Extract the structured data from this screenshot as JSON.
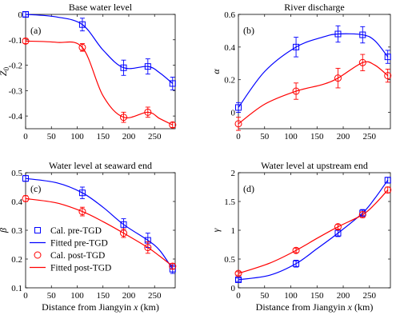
{
  "figure": {
    "shared_xlabel": "Distance from Jiangyin x (km)"
  },
  "colors": {
    "pre": "#0000ff",
    "post": "#ff0000",
    "axis": "#000000",
    "background": "#ffffff"
  },
  "legend": {
    "placement": "bottom-left of panel (c)",
    "entries": [
      {
        "label": "Cal. pre-TGD",
        "kind": "marker-square",
        "series": "pre"
      },
      {
        "label": "Fitted pre-TGD",
        "kind": "line",
        "series": "pre"
      },
      {
        "label": "Cal. post-TGD",
        "kind": "marker-circle",
        "series": "post"
      },
      {
        "label": "Fitted post-TGD",
        "kind": "line",
        "series": "post"
      }
    ]
  },
  "chart_data": [
    {
      "type": "scatter",
      "panel_label": "(a)",
      "title": "Base water level",
      "ylabel": "Z_0",
      "xlabel": "",
      "xlim": [
        0,
        290
      ],
      "ylim": [
        -0.45,
        0.0
      ],
      "xticks": [
        0,
        50,
        100,
        150,
        200,
        250
      ],
      "yticks": [
        0,
        -0.1,
        -0.2,
        -0.3,
        -0.4
      ],
      "ytick_labels": [
        "0",
        "-0.1",
        "-0.2",
        "-0.3",
        "-0.4"
      ],
      "series": [
        {
          "name": "Cal. pre-TGD",
          "key": "pre",
          "marker": "square",
          "x": [
            0,
            110,
            190,
            237,
            285
          ],
          "y": [
            0.0,
            -0.04,
            -0.21,
            -0.205,
            -0.272
          ],
          "err": [
            0.01,
            0.025,
            0.03,
            0.03,
            0.025
          ]
        },
        {
          "name": "Fitted pre-TGD",
          "key": "pre",
          "marker": "line",
          "x": [
            0,
            60,
            110,
            150,
            190,
            237,
            260,
            285
          ],
          "y": [
            0.0,
            -0.01,
            -0.04,
            -0.14,
            -0.21,
            -0.205,
            -0.23,
            -0.272
          ]
        },
        {
          "name": "Cal. post-TGD",
          "key": "post",
          "marker": "circle",
          "x": [
            0,
            110,
            190,
            237,
            285
          ],
          "y": [
            -0.105,
            -0.13,
            -0.405,
            -0.385,
            -0.435
          ],
          "err": [
            0.01,
            0.015,
            0.02,
            0.02,
            0.01
          ]
        },
        {
          "name": "Fitted post-TGD",
          "key": "post",
          "marker": "line",
          "x": [
            0,
            60,
            110,
            150,
            190,
            237,
            260,
            285
          ],
          "y": [
            -0.105,
            -0.11,
            -0.13,
            -0.32,
            -0.405,
            -0.385,
            -0.41,
            -0.435
          ]
        }
      ]
    },
    {
      "type": "scatter",
      "panel_label": "(b)",
      "title": "River discharge",
      "ylabel": "α",
      "xlabel": "",
      "xlim": [
        0,
        290
      ],
      "ylim": [
        -0.1,
        0.6
      ],
      "xticks": [
        0,
        50,
        100,
        150,
        200,
        250
      ],
      "yticks": [
        0,
        0.2,
        0.4,
        0.6
      ],
      "ytick_labels": [
        "0",
        "0.2",
        "0.4",
        "0.6"
      ],
      "series": [
        {
          "name": "Cal. pre-TGD",
          "key": "pre",
          "marker": "square",
          "x": [
            0,
            110,
            190,
            237,
            285
          ],
          "y": [
            0.03,
            0.4,
            0.48,
            0.475,
            0.34
          ],
          "err": [
            0.03,
            0.06,
            0.05,
            0.05,
            0.04
          ]
        },
        {
          "name": "Fitted pre-TGD",
          "key": "pre",
          "marker": "line",
          "x": [
            0,
            50,
            110,
            160,
            190,
            237,
            260,
            285
          ],
          "y": [
            0.03,
            0.25,
            0.4,
            0.46,
            0.48,
            0.475,
            0.44,
            0.34
          ]
        },
        {
          "name": "Cal. post-TGD",
          "key": "post",
          "marker": "circle",
          "x": [
            0,
            110,
            190,
            237,
            285
          ],
          "y": [
            -0.07,
            0.13,
            0.21,
            0.305,
            0.225
          ],
          "err": [
            0.04,
            0.05,
            0.06,
            0.05,
            0.04
          ]
        },
        {
          "name": "Fitted post-TGD",
          "key": "post",
          "marker": "line",
          "x": [
            0,
            50,
            110,
            160,
            190,
            237,
            260,
            285
          ],
          "y": [
            -0.07,
            0.05,
            0.13,
            0.17,
            0.21,
            0.305,
            0.29,
            0.225
          ]
        }
      ]
    },
    {
      "type": "scatter",
      "panel_label": "(c)",
      "title": "Water level at seaward end",
      "ylabel": "β",
      "xlabel": "Distance from Jiangyin x (km)",
      "xlim": [
        0,
        290
      ],
      "ylim": [
        0.1,
        0.5
      ],
      "xticks": [
        0,
        50,
        100,
        150,
        200,
        250
      ],
      "yticks": [
        0.1,
        0.2,
        0.3,
        0.4,
        0.5
      ],
      "ytick_labels": [
        "0.1",
        "0.2",
        "0.3",
        "0.4",
        "0.5"
      ],
      "series": [
        {
          "name": "Cal. pre-TGD",
          "key": "pre",
          "marker": "square",
          "x": [
            0,
            110,
            190,
            237,
            285
          ],
          "y": [
            0.48,
            0.43,
            0.32,
            0.265,
            0.165
          ],
          "err": [
            0.01,
            0.02,
            0.02,
            0.025,
            0.015
          ]
        },
        {
          "name": "Fitted pre-TGD",
          "key": "pre",
          "marker": "line",
          "x": [
            0,
            60,
            110,
            150,
            190,
            237,
            260,
            285
          ],
          "y": [
            0.48,
            0.465,
            0.43,
            0.38,
            0.32,
            0.265,
            0.23,
            0.165
          ]
        },
        {
          "name": "Cal. post-TGD",
          "key": "post",
          "marker": "circle",
          "x": [
            0,
            110,
            190,
            237,
            285
          ],
          "y": [
            0.41,
            0.365,
            0.29,
            0.24,
            0.175
          ],
          "err": [
            0.01,
            0.015,
            0.015,
            0.02,
            0.01
          ]
        },
        {
          "name": "Fitted post-TGD",
          "key": "post",
          "marker": "line",
          "x": [
            0,
            60,
            110,
            150,
            190,
            237,
            260,
            285
          ],
          "y": [
            0.41,
            0.395,
            0.365,
            0.33,
            0.29,
            0.24,
            0.21,
            0.175
          ]
        }
      ]
    },
    {
      "type": "scatter",
      "panel_label": "(d)",
      "title": "Water level at upstream end",
      "ylabel": "γ",
      "xlabel": "Distance from Jiangyin x (km)",
      "xlim": [
        0,
        290
      ],
      "ylim": [
        0,
        2
      ],
      "xticks": [
        0,
        50,
        100,
        150,
        200,
        250
      ],
      "yticks": [
        0,
        0.5,
        1,
        1.5,
        2
      ],
      "ytick_labels": [
        "0",
        "0.5",
        "1",
        "1.5",
        "2"
      ],
      "series": [
        {
          "name": "Cal. pre-TGD",
          "key": "pre",
          "marker": "square",
          "x": [
            0,
            110,
            190,
            237,
            285
          ],
          "y": [
            0.14,
            0.42,
            0.95,
            1.3,
            1.87
          ],
          "err": [
            0.03,
            0.06,
            0.06,
            0.06,
            0.05
          ]
        },
        {
          "name": "Fitted pre-TGD",
          "key": "pre",
          "marker": "line",
          "x": [
            0,
            60,
            110,
            150,
            190,
            237,
            260,
            285
          ],
          "y": [
            0.14,
            0.22,
            0.42,
            0.68,
            0.95,
            1.3,
            1.55,
            1.87
          ]
        },
        {
          "name": "Cal. post-TGD",
          "key": "post",
          "marker": "circle",
          "x": [
            0,
            110,
            190,
            237,
            285
          ],
          "y": [
            0.25,
            0.65,
            1.06,
            1.27,
            1.7
          ],
          "err": [
            0.03,
            0.04,
            0.04,
            0.05,
            0.05
          ]
        },
        {
          "name": "Fitted post-TGD",
          "key": "post",
          "marker": "line",
          "x": [
            0,
            60,
            110,
            150,
            190,
            237,
            260,
            285
          ],
          "y": [
            0.25,
            0.43,
            0.65,
            0.86,
            1.06,
            1.27,
            1.45,
            1.7
          ]
        }
      ]
    }
  ]
}
